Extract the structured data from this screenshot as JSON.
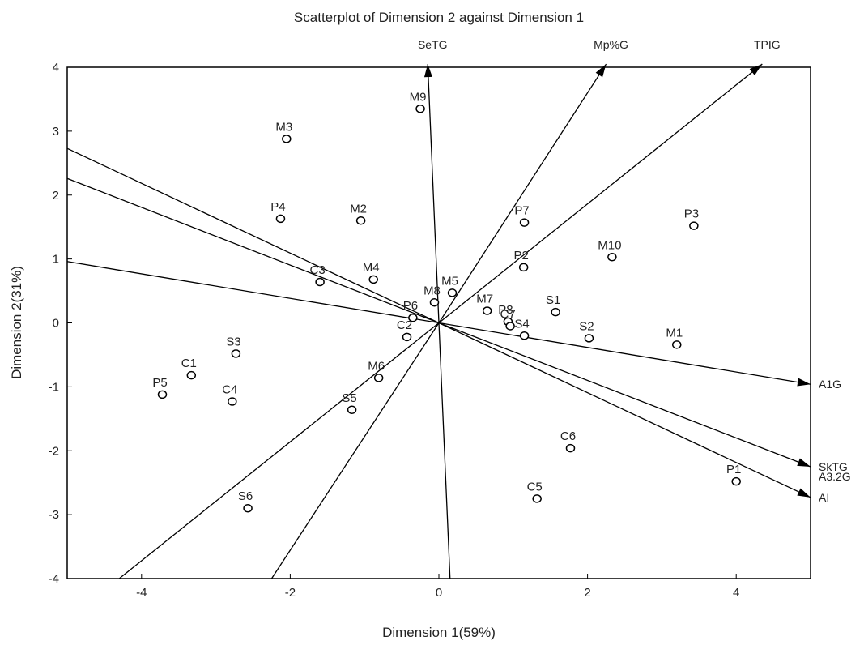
{
  "chart_data": {
    "type": "scatter",
    "title": "Scatterplot of Dimension 2 against Dimension 1",
    "xlabel": "Dimension 1(59%)",
    "ylabel": "Dimension 2(31%)",
    "xlim": [
      -5,
      5
    ],
    "ylim": [
      -4,
      4
    ],
    "xticks": [
      -4,
      -2,
      0,
      2,
      4
    ],
    "yticks": [
      -4,
      -3,
      -2,
      -1,
      0,
      1,
      2,
      3,
      4
    ],
    "grid": false,
    "legend": "none",
    "points": [
      {
        "label": "M9",
        "x": -0.25,
        "y": 3.35
      },
      {
        "label": "M3",
        "x": -2.05,
        "y": 2.88
      },
      {
        "label": "P4",
        "x": -2.13,
        "y": 1.63
      },
      {
        "label": "M2",
        "x": -1.05,
        "y": 1.6
      },
      {
        "label": "P7",
        "x": 1.15,
        "y": 1.57
      },
      {
        "label": "P3",
        "x": 3.43,
        "y": 1.52
      },
      {
        "label": "M10",
        "x": 2.33,
        "y": 1.03
      },
      {
        "label": "P2",
        "x": 1.14,
        "y": 0.87
      },
      {
        "label": "C3",
        "x": -1.6,
        "y": 0.64
      },
      {
        "label": "M4",
        "x": -0.88,
        "y": 0.68
      },
      {
        "label": "M5",
        "x": 0.18,
        "y": 0.47
      },
      {
        "label": "M8",
        "x": -0.06,
        "y": 0.32
      },
      {
        "label": "P6",
        "x": -0.35,
        "y": 0.08
      },
      {
        "label": "M7",
        "x": 0.65,
        "y": 0.19
      },
      {
        "label": "S1",
        "x": 1.57,
        "y": 0.17
      },
      {
        "label": "P8",
        "x": 0.93,
        "y": 0.02
      },
      {
        "label": "C7",
        "x": 0.96,
        "y": -0.05
      },
      {
        "label": "C2",
        "x": -0.43,
        "y": -0.22
      },
      {
        "label": "S4",
        "x": 1.15,
        "y": -0.2
      },
      {
        "label": "S2",
        "x": 2.02,
        "y": -0.24
      },
      {
        "label": "M1",
        "x": 3.2,
        "y": -0.34
      },
      {
        "label": "S3",
        "x": -2.73,
        "y": -0.48
      },
      {
        "label": "C1",
        "x": -3.33,
        "y": -0.82
      },
      {
        "label": "M6",
        "x": -0.81,
        "y": -0.86
      },
      {
        "label": "P5",
        "x": -3.72,
        "y": -1.12
      },
      {
        "label": "C4",
        "x": -2.78,
        "y": -1.23
      },
      {
        "label": "S5",
        "x": -1.17,
        "y": -1.36
      },
      {
        "label": "C6",
        "x": 1.77,
        "y": -1.96
      },
      {
        "label": "P1",
        "x": 4.0,
        "y": -2.48
      },
      {
        "label": "C5",
        "x": 1.32,
        "y": -2.75
      },
      {
        "label": "S6",
        "x": -2.57,
        "y": -2.9
      }
    ],
    "vectors": [
      {
        "label": "SeTG",
        "x": -0.15,
        "y": 4.05
      },
      {
        "label": "Mp%G",
        "x": 2.25,
        "y": 4.05
      },
      {
        "label": "TPIG",
        "x": 4.35,
        "y": 4.05
      },
      {
        "label": "A1G",
        "x": 5.0,
        "y": -0.96
      },
      {
        "label": "SkTG",
        "x": 5.0,
        "y": -2.25
      },
      {
        "label": "AI",
        "x": 5.0,
        "y": -2.73
      }
    ],
    "extra_labels": [
      {
        "label": "A3.2G",
        "x": 5.0,
        "y": -2.4
      }
    ],
    "lines": [
      {
        "x": -5,
        "y": 2.73
      },
      {
        "x": -5,
        "y": 2.26
      },
      {
        "x": -5,
        "y": 0.96
      },
      {
        "x": -4.3,
        "y": -4
      },
      {
        "x": -2.25,
        "y": -4
      },
      {
        "x": 0.15,
        "y": -4
      }
    ]
  }
}
